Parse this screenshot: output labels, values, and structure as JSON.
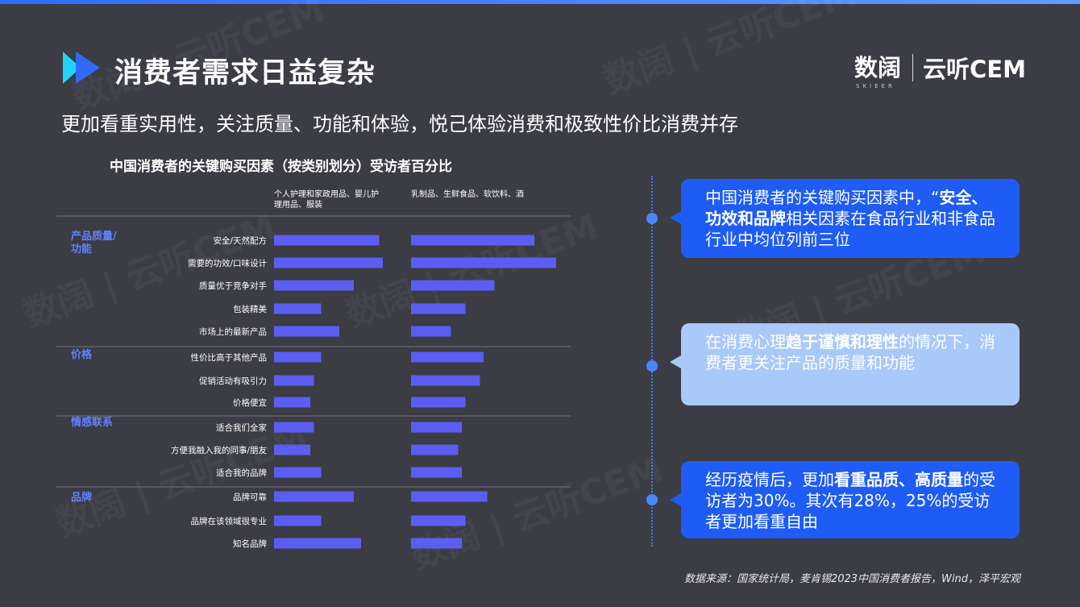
{
  "header": {
    "title": "消费者需求日益复杂",
    "logo_cn": "数阔",
    "logo_sub": "SKIEER",
    "logo_brand": "云听CEM"
  },
  "watermark": {
    "text_a": "数阔",
    "text_b": "云听CEM"
  },
  "subtitle": "更加看重实用性，关注质量、功能和体验，悦己体验消费和极致性价比消费并存",
  "callouts": [
    {
      "pre": "中国消费者的关键购买因素中，“",
      "bold": "安全、功效和品牌",
      "post": "相关因素在食品行业和非食品行业中均位列前三位"
    },
    {
      "pre": "在消费心理",
      "bold": "趋于谨慎和理性",
      "post": "的情况下，消费者更关注产品的质量和功能"
    },
    {
      "pre": "经历疫情后，更加",
      "bold": "看重品质、高质量",
      "post": "的受访者为30%。其次有28%，25%的受访者更加看重自由"
    }
  ],
  "source": "数据来源：国家统计局，麦肯锡2023中国消费者报告，Wind，泽平宏观",
  "colors": {
    "bar": "#5b5ef2",
    "accent": "#2f6bff",
    "divider": "#6f7283"
  },
  "chart_data": {
    "type": "bar",
    "orientation": "horizontal",
    "title": "中国消费者的关键购买因素（按类别划分）受访者百分比",
    "series": [
      {
        "name": "个人护理和家政用品、婴儿护理用品、服装",
        "values": [
          29,
          30,
          22,
          13,
          18,
          13,
          11,
          10,
          11,
          10,
          13,
          22,
          13,
          24
        ]
      },
      {
        "name": "乳制品、生鲜食品、软饮料、酒",
        "values": [
          34,
          40,
          23,
          15,
          11,
          20,
          19,
          15,
          14,
          13,
          14,
          21,
          15,
          14
        ]
      }
    ],
    "groups": [
      {
        "name": "产品质量/功能",
        "items": [
          "安全/天然配方",
          "需要的功效/口味设计",
          "质量优于竞争对手",
          "包装精美",
          "市场上的最新产品"
        ]
      },
      {
        "name": "价格",
        "items": [
          "性价比高于其他产品",
          "促销活动有吸引力",
          "价格便宜"
        ]
      },
      {
        "name": "情感联系",
        "items": [
          "适合我们全家",
          "方便我融入我的同事/朋友",
          "适合我的品牌"
        ]
      },
      {
        "name": "品牌",
        "items": [
          "品牌可靠",
          "品牌在该领域很专业",
          "知名品牌"
        ]
      }
    ],
    "categories": [
      "安全/天然配方",
      "需要的功效/口味设计",
      "质量优于竞争对手",
      "包装精美",
      "市场上的最新产品",
      "性价比高于其他产品",
      "促销活动有吸引力",
      "价格便宜",
      "适合我们全家",
      "方便我融入我的同事/朋友",
      "适合我的品牌",
      "品牌可靠",
      "品牌在该领域很专业",
      "知名品牌"
    ]
  }
}
